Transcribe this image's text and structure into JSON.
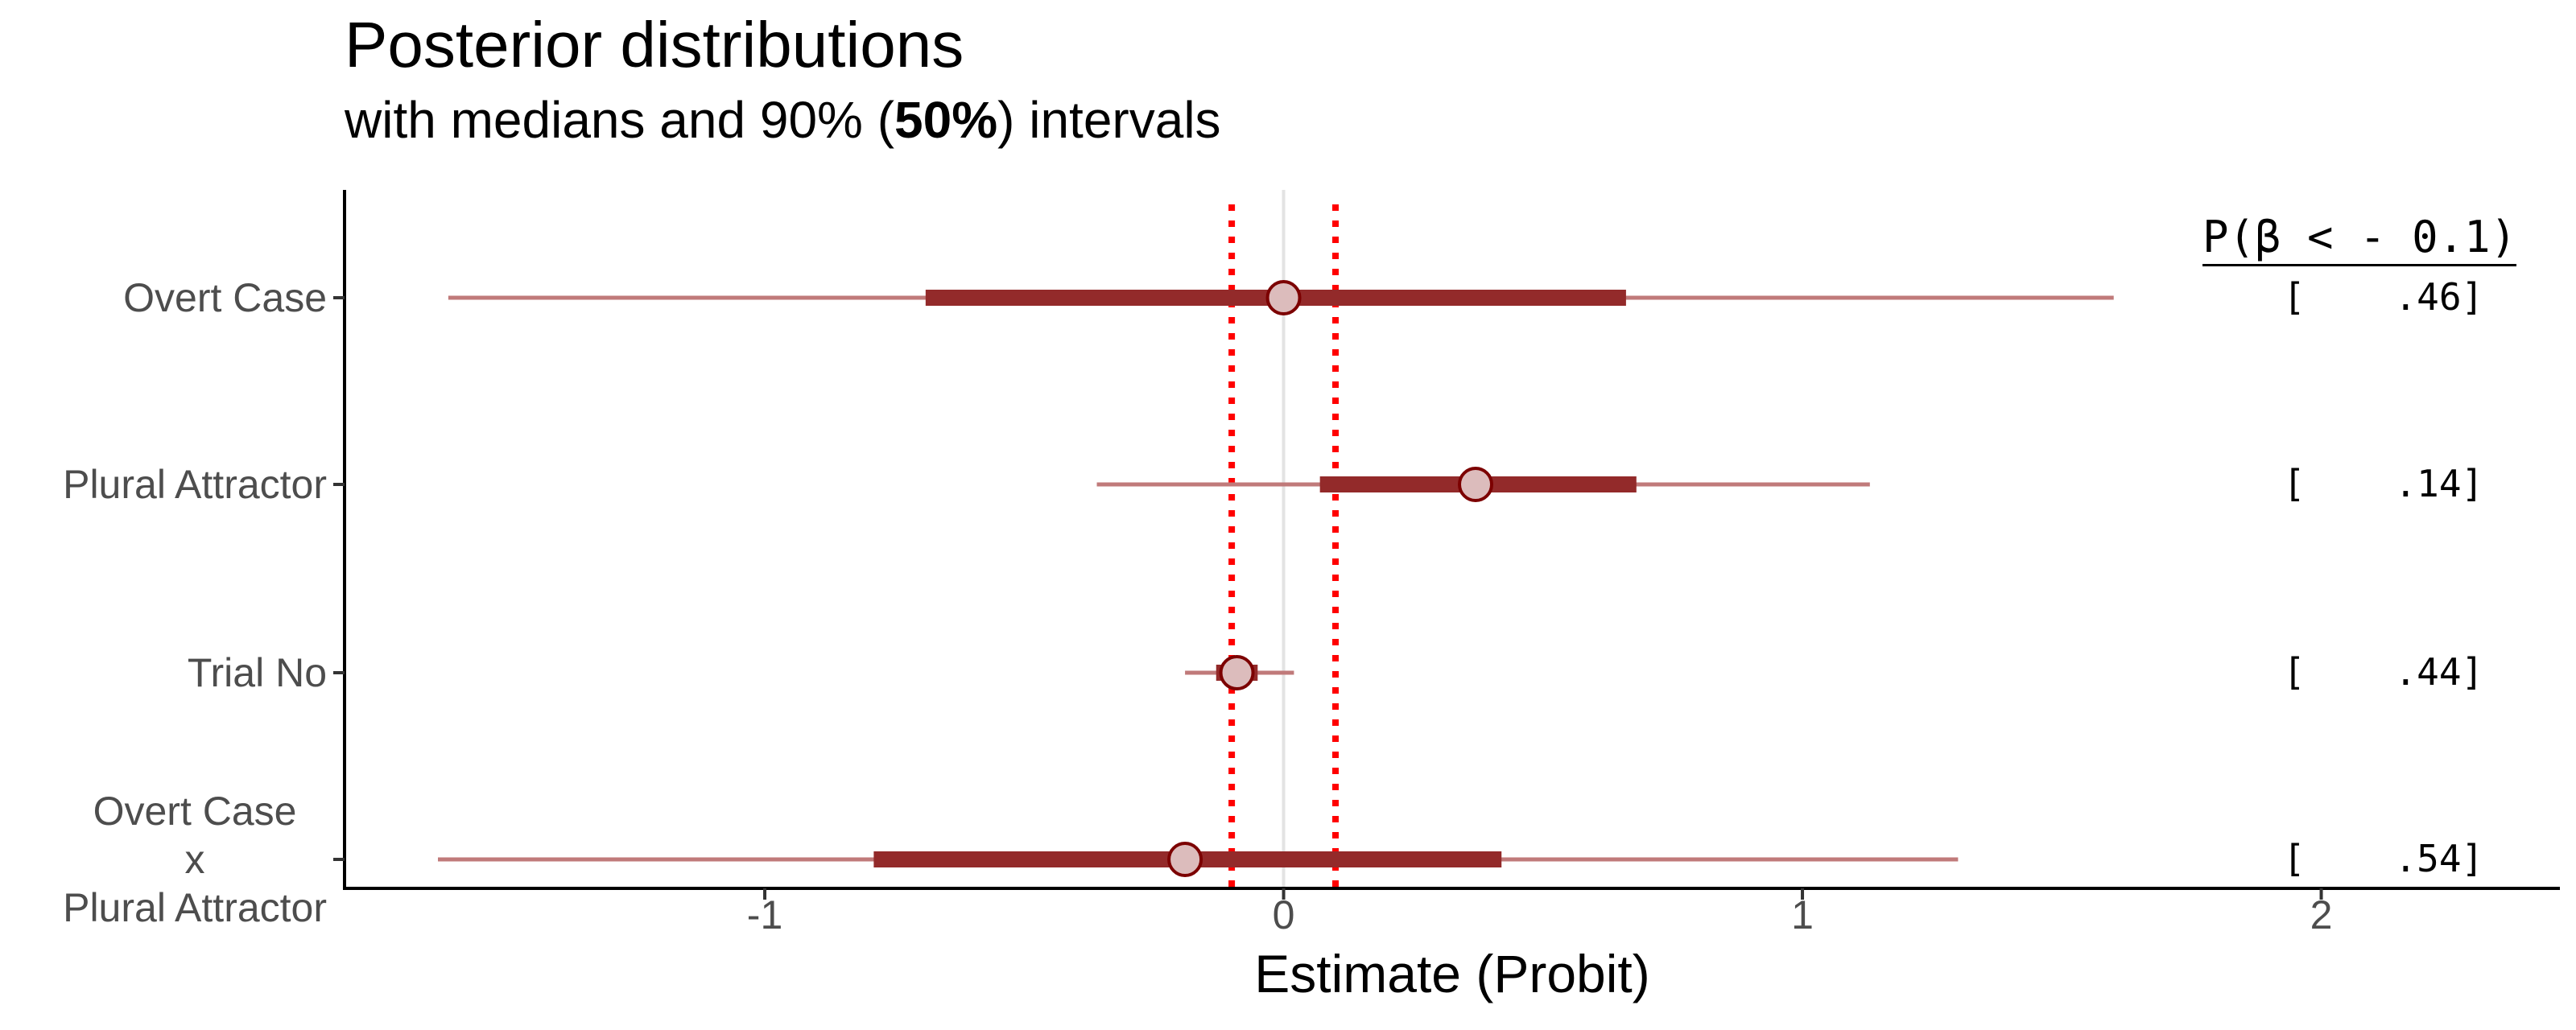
{
  "chart_data": {
    "type": "interval",
    "title": "Posterior distributions",
    "subtitle_pre": "with medians and 90% (",
    "subtitle_bold": "50%",
    "subtitle_post": ") intervals",
    "xlabel": "Estimate (Probit)",
    "xlim": [
      -1.81,
      2.46
    ],
    "xticks": [
      "-1",
      "0",
      "1",
      "2"
    ],
    "xtick_values": [
      -1,
      0,
      1,
      2
    ],
    "reference_lines": {
      "solid": 0,
      "dotted": [
        -0.1,
        0.1
      ]
    },
    "prob_header": "P(β < - 0.1)",
    "rows": [
      {
        "label_lines": [
          "Overt Case"
        ],
        "median": 0.0,
        "outer": [
          -1.61,
          1.6
        ],
        "inner": [
          -0.69,
          0.66
        ],
        "prob": "[    .46]"
      },
      {
        "label_lines": [
          "Plural Attractor"
        ],
        "median": 0.37,
        "outer": [
          -0.36,
          1.13
        ],
        "inner": [
          0.07,
          0.68
        ],
        "prob": "[    .14]"
      },
      {
        "label_lines": [
          "Trial No"
        ],
        "median": -0.09,
        "outer": [
          -0.19,
          0.02
        ],
        "inner": [
          -0.13,
          -0.05
        ],
        "prob": "[    .44]"
      },
      {
        "label_lines": [
          "Overt Case",
          "x",
          "Plural Attractor"
        ],
        "median": -0.19,
        "outer": [
          -1.63,
          1.3
        ],
        "inner": [
          -0.79,
          0.42
        ],
        "prob": "[    .54]"
      }
    ]
  },
  "colors": {
    "thin_interval": "#c07a7a",
    "thick_interval": "#932a2a",
    "point_fill": "#dcbcbc",
    "point_stroke": "#7c0000",
    "dotted_line": "#ff0000",
    "zero_line": "#e3e3e3",
    "axis": "#000000"
  }
}
